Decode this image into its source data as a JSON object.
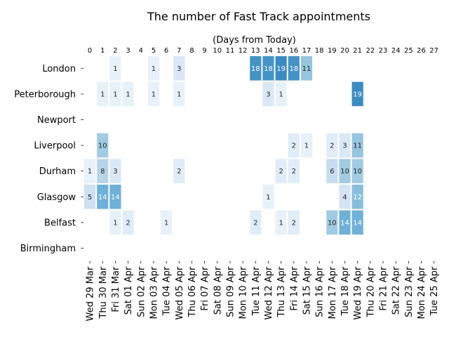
{
  "chart_data": {
    "type": "heatmap",
    "title": "The number of Fast Track appointments",
    "subtitle": "(Days from Today)",
    "top_ticks": [
      0,
      1,
      2,
      3,
      4,
      5,
      6,
      7,
      8,
      9,
      10,
      11,
      12,
      13,
      14,
      15,
      16,
      17,
      18,
      19,
      20,
      21,
      22,
      23,
      24,
      25,
      26,
      27
    ],
    "x_labels": [
      "Wed 29 Mar",
      "Thu 30 Mar",
      "Fri 31 Mar",
      "Sat 01 Apr",
      "Sun 02 Apr",
      "Mon 03 Apr",
      "Tue 04 Apr",
      "Wed 05 Apr",
      "Thu 06 Apr",
      "Fri 07 Apr",
      "Sat 08 Apr",
      "Sun 09 Apr",
      "Mon 10 Apr",
      "Tue 11 Apr",
      "Wed 12 Apr",
      "Thu 13 Apr",
      "Fri 14 Apr",
      "Sat 15 Apr",
      "Sun 16 Apr",
      "Mon 17 Apr",
      "Tue 18 Apr",
      "Wed 19 Apr",
      "Thu 20 Apr",
      "Fri 21 Apr",
      "Sat 22 Apr",
      "Sun 23 Apr",
      "Mon 24 Apr",
      "Tue 25 Apr"
    ],
    "y_labels": [
      "London",
      "Peterborough",
      "Newport",
      "Liverpool",
      "Durham",
      "Glasgow",
      "Belfast",
      "Birmingham"
    ],
    "value_range": [
      0,
      19
    ],
    "colormap": "Blues",
    "values": [
      [
        null,
        null,
        1,
        null,
        null,
        1,
        null,
        3,
        null,
        null,
        null,
        null,
        null,
        18,
        18,
        19,
        18,
        11,
        null,
        null,
        null,
        null,
        null,
        null,
        null,
        null,
        null,
        null
      ],
      [
        null,
        1,
        1,
        1,
        null,
        1,
        null,
        1,
        null,
        null,
        null,
        null,
        null,
        null,
        3,
        1,
        null,
        null,
        null,
        null,
        null,
        19,
        null,
        null,
        null,
        null,
        null,
        null
      ],
      [
        null,
        null,
        null,
        null,
        null,
        null,
        null,
        null,
        null,
        null,
        null,
        null,
        null,
        null,
        null,
        null,
        null,
        null,
        null,
        null,
        null,
        null,
        null,
        null,
        null,
        null,
        null,
        null
      ],
      [
        null,
        10,
        null,
        null,
        null,
        null,
        null,
        null,
        null,
        null,
        null,
        null,
        null,
        null,
        null,
        null,
        2,
        1,
        null,
        2,
        3,
        11,
        null,
        null,
        null,
        null,
        null,
        null
      ],
      [
        1,
        8,
        3,
        null,
        null,
        null,
        null,
        2,
        null,
        null,
        null,
        null,
        null,
        null,
        null,
        2,
        2,
        null,
        null,
        6,
        10,
        10,
        null,
        null,
        null,
        null,
        null,
        null
      ],
      [
        5,
        14,
        14,
        null,
        null,
        null,
        null,
        null,
        null,
        null,
        null,
        null,
        null,
        null,
        1,
        null,
        null,
        null,
        null,
        null,
        4,
        12,
        null,
        null,
        null,
        null,
        null,
        null
      ],
      [
        null,
        null,
        1,
        2,
        null,
        null,
        1,
        null,
        null,
        null,
        null,
        null,
        null,
        2,
        null,
        1,
        2,
        null,
        null,
        10,
        14,
        14,
        null,
        null,
        null,
        null,
        null,
        null
      ],
      [
        null,
        null,
        null,
        null,
        null,
        null,
        null,
        null,
        null,
        null,
        null,
        null,
        null,
        null,
        null,
        null,
        null,
        null,
        null,
        null,
        null,
        null,
        null,
        null,
        null,
        null,
        null,
        null
      ]
    ]
  }
}
